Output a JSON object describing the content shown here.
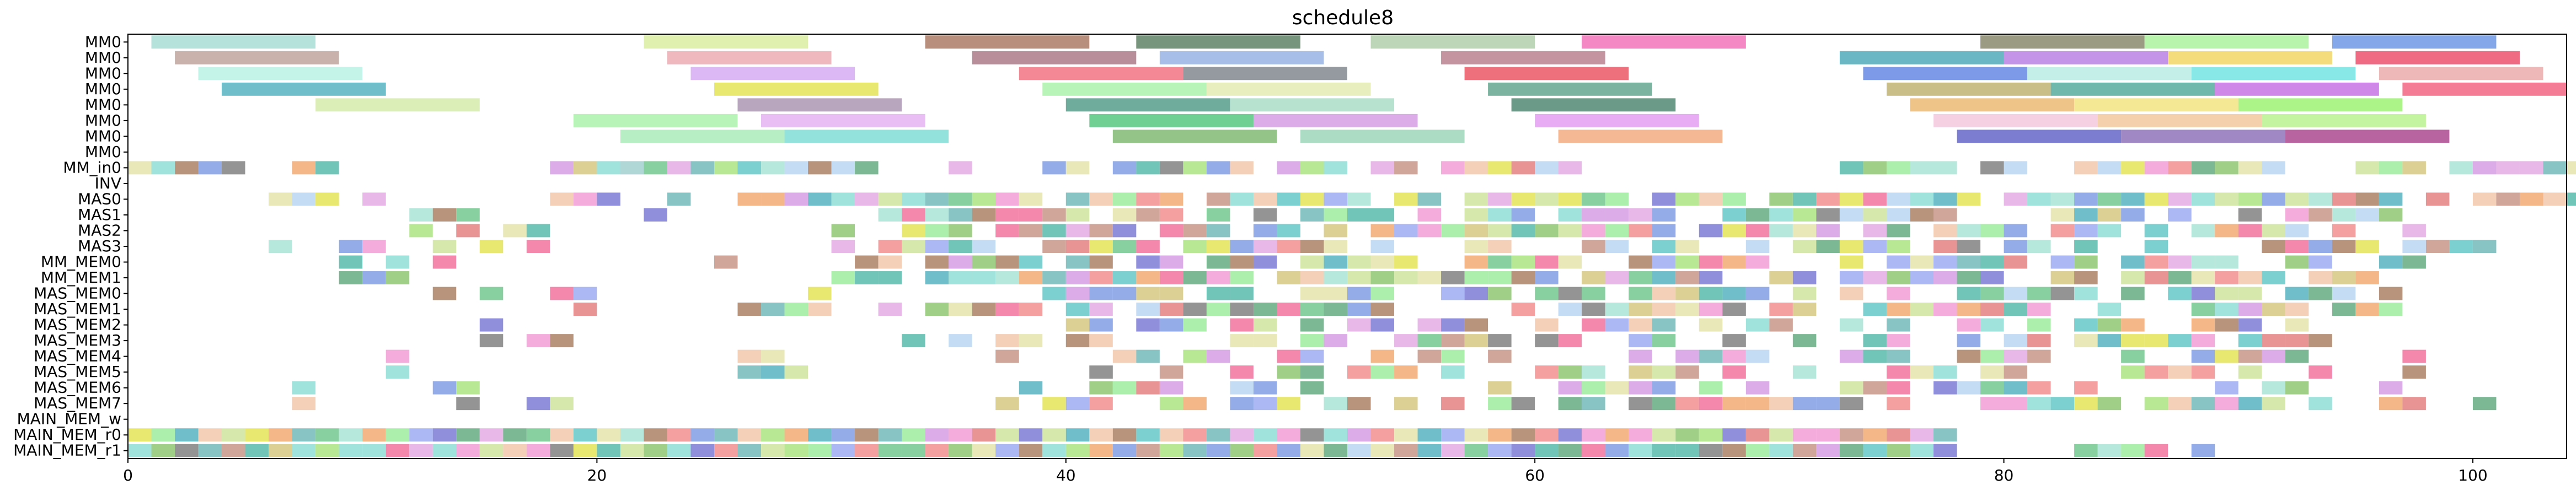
{
  "chart_data": {
    "type": "gantt",
    "title": "schedule8",
    "xlabel": "",
    "ylabel": "",
    "xlim": [
      0,
      104
    ],
    "xticks": [
      0,
      20,
      40,
      60,
      80,
      100
    ],
    "grid": false,
    "rows": [
      "MM0",
      "MM0",
      "MM0",
      "MM0",
      "MM0",
      "MM0",
      "MM0",
      "MM0",
      "MM_in0",
      "INV",
      "MAS0",
      "MAS1",
      "MAS2",
      "MAS3",
      "MM_MEM0",
      "MM_MEM1",
      "MAS_MEM0",
      "MAS_MEM1",
      "MAS_MEM2",
      "MAS_MEM3",
      "MAS_MEM4",
      "MAS_MEM5",
      "MAS_MEM6",
      "MAS_MEM7",
      "MAIN_MEM_w",
      "MAIN_MEM_r0",
      "MAIN_MEM_r1"
    ],
    "palette": [
      "#80d8d0",
      "#c08878",
      "#9de0d0",
      "#3fa8b8",
      "#c8e090",
      "#90e890",
      "#40b0a0",
      "#e0a0e0",
      "#f06090",
      "#e0e040",
      "#60c080",
      "#f08080",
      "#7090e0",
      "#a07050",
      "#80c060",
      "#50a070",
      "#60b0b0",
      "#d0c070",
      "#e07070",
      "#b0d0f0",
      "#6a6ad0",
      "#f090d0",
      "#f0c0a0",
      "#50c0c0",
      "#e0e0a0",
      "#90a0f0",
      "#d090e0",
      "#a0e070",
      "#707070",
      "#f0a060"
    ],
    "tasks": [
      {
        "row": 0,
        "start": 1,
        "end": 8,
        "color": "#9ed8d0"
      },
      {
        "row": 0,
        "start": 22,
        "end": 29,
        "color": "#d6ec94"
      },
      {
        "row": 0,
        "start": 34,
        "end": 41,
        "color": "#a06a50"
      },
      {
        "row": 0,
        "start": 43,
        "end": 50,
        "color": "#4a7050"
      },
      {
        "row": 0,
        "start": 53,
        "end": 60,
        "color": "#a8c8a0"
      },
      {
        "row": 0,
        "start": 62,
        "end": 69,
        "color": "#f060b0"
      },
      {
        "row": 0,
        "start": 79,
        "end": 86,
        "color": "#7a7a5a"
      },
      {
        "row": 0,
        "start": 86,
        "end": 93,
        "color": "#a0f090"
      },
      {
        "row": 0,
        "start": 94,
        "end": 101,
        "color": "#5a8ae0"
      },
      {
        "row": 1,
        "start": 2,
        "end": 9,
        "color": "#b89890"
      },
      {
        "row": 1,
        "start": 23,
        "end": 30,
        "color": "#e8a0a8"
      },
      {
        "row": 1,
        "start": 36,
        "end": 43,
        "color": "#a06878"
      },
      {
        "row": 1,
        "start": 44,
        "end": 51,
        "color": "#88a8e0"
      },
      {
        "row": 1,
        "start": 56,
        "end": 63,
        "color": "#b07080"
      },
      {
        "row": 1,
        "start": 73,
        "end": 80,
        "color": "#3aa0b0"
      },
      {
        "row": 1,
        "start": 80,
        "end": 87,
        "color": "#b070e0"
      },
      {
        "row": 1,
        "start": 87,
        "end": 94,
        "color": "#f0d050"
      },
      {
        "row": 1,
        "start": 95,
        "end": 102,
        "color": "#e83a5a"
      },
      {
        "row": 2,
        "start": 3,
        "end": 10,
        "color": "#b0f0e0"
      },
      {
        "row": 2,
        "start": 24,
        "end": 31,
        "color": "#d0a0f0"
      },
      {
        "row": 2,
        "start": 38,
        "end": 45,
        "color": "#f06070"
      },
      {
        "row": 2,
        "start": 45,
        "end": 52,
        "color": "#707880"
      },
      {
        "row": 2,
        "start": 57,
        "end": 64,
        "color": "#e84050"
      },
      {
        "row": 2,
        "start": 74,
        "end": 81,
        "color": "#5078e0"
      },
      {
        "row": 2,
        "start": 81,
        "end": 88,
        "color": "#b0e8e0"
      },
      {
        "row": 2,
        "start": 88,
        "end": 95,
        "color": "#60e0e0"
      },
      {
        "row": 2,
        "start": 96,
        "end": 103,
        "color": "#e8a0a0"
      },
      {
        "row": 3,
        "start": 4,
        "end": 11,
        "color": "#40a8b8"
      },
      {
        "row": 3,
        "start": 25,
        "end": 32,
        "color": "#e0e040"
      },
      {
        "row": 3,
        "start": 39,
        "end": 46,
        "color": "#a0f0a0"
      },
      {
        "row": 3,
        "start": 46,
        "end": 53,
        "color": "#e0e8a8"
      },
      {
        "row": 3,
        "start": 58,
        "end": 65,
        "color": "#509880"
      },
      {
        "row": 3,
        "start": 75,
        "end": 82,
        "color": "#b8a860"
      },
      {
        "row": 3,
        "start": 82,
        "end": 89,
        "color": "#40a090"
      },
      {
        "row": 3,
        "start": 89,
        "end": 96,
        "color": "#c060e0"
      },
      {
        "row": 3,
        "start": 97,
        "end": 104,
        "color": "#f05070"
      },
      {
        "row": 4,
        "start": 8,
        "end": 15,
        "color": "#d0e8a0"
      },
      {
        "row": 4,
        "start": 26,
        "end": 33,
        "color": "#a088a8"
      },
      {
        "row": 4,
        "start": 40,
        "end": 47,
        "color": "#40907a"
      },
      {
        "row": 4,
        "start": 47,
        "end": 54,
        "color": "#a0d8c0"
      },
      {
        "row": 4,
        "start": 59,
        "end": 66,
        "color": "#3a7a60"
      },
      {
        "row": 4,
        "start": 76,
        "end": 83,
        "color": "#e8b060"
      },
      {
        "row": 4,
        "start": 83,
        "end": 90,
        "color": "#f0e070"
      },
      {
        "row": 4,
        "start": 90,
        "end": 97,
        "color": "#90f060"
      },
      {
        "row": 5,
        "start": 19,
        "end": 26,
        "color": "#a0f0a0"
      },
      {
        "row": 5,
        "start": 27,
        "end": 34,
        "color": "#e0a8f0"
      },
      {
        "row": 5,
        "start": 41,
        "end": 48,
        "color": "#40c070"
      },
      {
        "row": 5,
        "start": 48,
        "end": 55,
        "color": "#d090e0"
      },
      {
        "row": 5,
        "start": 60,
        "end": 67,
        "color": "#e090f0"
      },
      {
        "row": 5,
        "start": 77,
        "end": 84,
        "color": "#f0c0d8"
      },
      {
        "row": 5,
        "start": 84,
        "end": 91,
        "color": "#f0c090"
      },
      {
        "row": 5,
        "start": 91,
        "end": 98,
        "color": "#b0f080"
      },
      {
        "row": 6,
        "start": 21,
        "end": 28,
        "color": "#a0e8b0"
      },
      {
        "row": 6,
        "start": 28,
        "end": 35,
        "color": "#70d8d0"
      },
      {
        "row": 6,
        "start": 42,
        "end": 49,
        "color": "#70b060"
      },
      {
        "row": 6,
        "start": 50,
        "end": 57,
        "color": "#90d0b0"
      },
      {
        "row": 6,
        "start": 61,
        "end": 68,
        "color": "#f0a070"
      },
      {
        "row": 6,
        "start": 78,
        "end": 85,
        "color": "#5050c0"
      },
      {
        "row": 6,
        "start": 85,
        "end": 92,
        "color": "#8060b0"
      },
      {
        "row": 6,
        "start": 92,
        "end": 99,
        "color": "#a03080"
      }
    ],
    "dense": {
      "seed": 8,
      "fill": [
        {
          "row": 8,
          "from": 0,
          "to": 4,
          "p": 0.9
        },
        {
          "row": 8,
          "from": 7,
          "to": 8,
          "p": 0.9
        },
        {
          "row": 8,
          "from": 18,
          "to": 21,
          "p": 0.6
        },
        {
          "row": 8,
          "from": 20,
          "to": 31,
          "p": 0.9
        },
        {
          "row": 8,
          "from": 35,
          "to": 35,
          "p": 0.9
        },
        {
          "row": 8,
          "from": 38,
          "to": 62,
          "p": 0.85
        },
        {
          "row": 8,
          "from": 72,
          "to": 104,
          "p": 0.85
        },
        {
          "row": 10,
          "from": 6,
          "to": 12,
          "p": 0.7
        },
        {
          "row": 10,
          "from": 17,
          "to": 24,
          "p": 0.5
        },
        {
          "row": 10,
          "from": 26,
          "to": 104,
          "p": 0.8
        },
        {
          "row": 11,
          "from": 12,
          "to": 14,
          "p": 0.5
        },
        {
          "row": 11,
          "from": 16,
          "to": 22,
          "p": 0.4
        },
        {
          "row": 11,
          "from": 32,
          "to": 96,
          "p": 0.7
        },
        {
          "row": 12,
          "from": 11,
          "to": 20,
          "p": 0.5
        },
        {
          "row": 12,
          "from": 29,
          "to": 97,
          "p": 0.72
        },
        {
          "row": 13,
          "from": 5,
          "to": 18,
          "p": 0.35
        },
        {
          "row": 13,
          "from": 29,
          "to": 100,
          "p": 0.6
        },
        {
          "row": 14,
          "from": 9,
          "to": 15,
          "p": 0.45
        },
        {
          "row": 14,
          "from": 25,
          "to": 25,
          "p": 0.9
        },
        {
          "row": 14,
          "from": 31,
          "to": 97,
          "p": 0.75
        },
        {
          "row": 15,
          "from": 9,
          "to": 12,
          "p": 0.6
        },
        {
          "row": 15,
          "from": 30,
          "to": 96,
          "p": 0.78
        },
        {
          "row": 16,
          "from": 10,
          "to": 20,
          "p": 0.45
        },
        {
          "row": 16,
          "from": 26,
          "to": 29,
          "p": 0.6
        },
        {
          "row": 16,
          "from": 38,
          "to": 96,
          "p": 0.75
        },
        {
          "row": 17,
          "from": 13,
          "to": 20,
          "p": 0.4
        },
        {
          "row": 17,
          "from": 26,
          "to": 29,
          "p": 0.85
        },
        {
          "row": 17,
          "from": 32,
          "to": 96,
          "p": 0.72
        },
        {
          "row": 18,
          "from": 15,
          "to": 17,
          "p": 0.8
        },
        {
          "row": 18,
          "from": 40,
          "to": 93,
          "p": 0.65
        },
        {
          "row": 19,
          "from": 15,
          "to": 18,
          "p": 0.7
        },
        {
          "row": 19,
          "from": 33,
          "to": 41,
          "p": 0.55
        },
        {
          "row": 19,
          "from": 47,
          "to": 93,
          "p": 0.6
        },
        {
          "row": 20,
          "from": 11,
          "to": 11,
          "p": 0.9
        },
        {
          "row": 20,
          "from": 26,
          "to": 28,
          "p": 0.7
        },
        {
          "row": 20,
          "from": 37,
          "to": 100,
          "p": 0.55
        },
        {
          "row": 21,
          "from": 11,
          "to": 11,
          "p": 0.9
        },
        {
          "row": 21,
          "from": 26,
          "to": 28,
          "p": 0.7
        },
        {
          "row": 21,
          "from": 40,
          "to": 97,
          "p": 0.5
        },
        {
          "row": 22,
          "from": 7,
          "to": 7,
          "p": 0.9
        },
        {
          "row": 22,
          "from": 13,
          "to": 17,
          "p": 0.6
        },
        {
          "row": 22,
          "from": 36,
          "to": 97,
          "p": 0.5
        },
        {
          "row": 23,
          "from": 7,
          "to": 7,
          "p": 0.9
        },
        {
          "row": 23,
          "from": 13,
          "to": 18,
          "p": 0.6
        },
        {
          "row": 23,
          "from": 35,
          "to": 100,
          "p": 0.6
        },
        {
          "row": 25,
          "from": 0,
          "to": 77,
          "p": 1.0
        },
        {
          "row": 26,
          "from": 0,
          "to": 77,
          "p": 1.0
        },
        {
          "row": 26,
          "from": 83,
          "to": 89,
          "p": 0.6
        }
      ]
    }
  }
}
